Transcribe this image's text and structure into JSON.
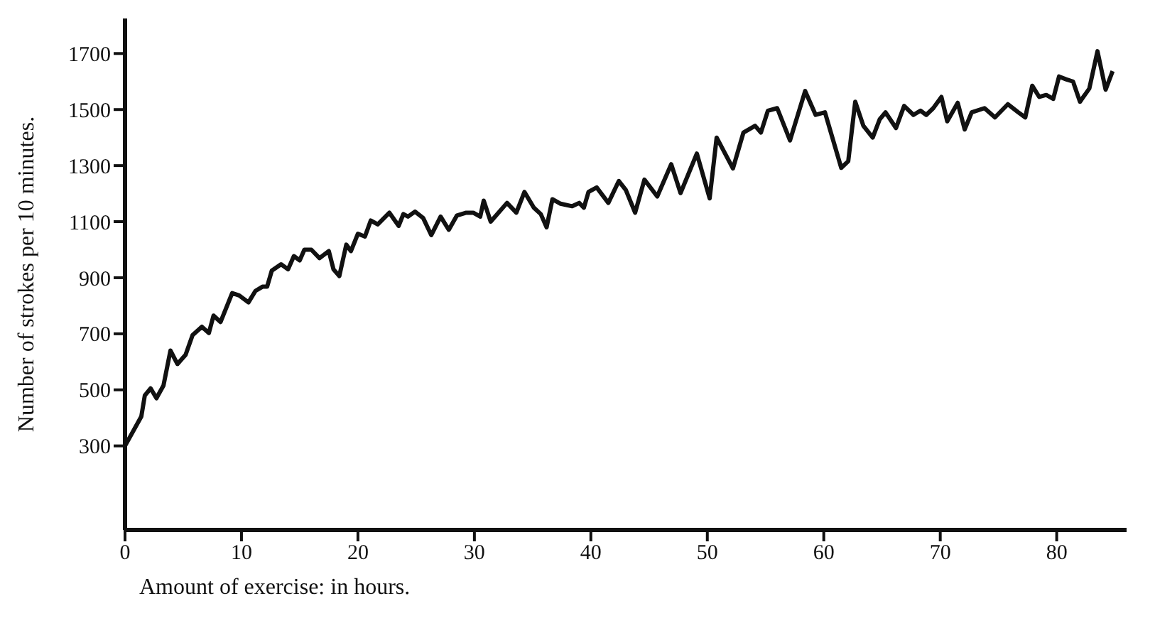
{
  "chart_data": {
    "type": "line",
    "xlabel": "Amount of exercise: in hours.",
    "ylabel": "Number of strokes per 10 minutes.",
    "xlim": [
      0,
      86
    ],
    "xticks": [
      0,
      10,
      20,
      30,
      40,
      50,
      60,
      70,
      80
    ],
    "ylim": [
      0,
      1825
    ],
    "yticks": [
      300,
      500,
      700,
      900,
      1100,
      1300,
      1500,
      1700
    ],
    "grid": false,
    "legend": false,
    "marker": "none",
    "line_style": "solid",
    "series": [
      {
        "color": "#111111",
        "x": [
          0,
          1.4,
          1.7,
          2.2,
          2.7,
          3.3,
          3.9,
          4.5,
          5.2,
          5.8,
          6.6,
          7.2,
          7.6,
          8.2,
          9.2,
          9.8,
          10.6,
          11.2,
          11.8,
          12.2,
          12.6,
          13.4,
          14,
          14.5,
          15,
          15.4,
          16,
          16.7,
          17.5,
          17.9,
          18.4,
          19,
          19.4,
          20,
          20.6,
          21.1,
          21.7,
          22.7,
          23.5,
          23.9,
          24.3,
          24.9,
          25.6,
          26.3,
          27.1,
          27.8,
          28.5,
          29.3,
          29.9,
          30.5,
          30.8,
          31.4,
          32.8,
          33.6,
          34.3,
          35.1,
          35.7,
          36.2,
          36.7,
          37.4,
          38.4,
          39,
          39.4,
          39.8,
          40.5,
          41.5,
          42.4,
          43,
          43.8,
          44.6,
          45.7,
          46.9,
          47.7,
          49.1,
          50.2,
          50.8,
          52.2,
          53.1,
          54.1,
          54.6,
          55.2,
          56,
          57.1,
          58.4,
          59.3,
          60.1,
          61.5,
          62.1,
          62.7,
          63.4,
          64.2,
          64.8,
          65.3,
          66.2,
          66.9,
          67.7,
          68.3,
          68.8,
          69.4,
          70.1,
          70.6,
          71.5,
          72.1,
          72.7,
          73.8,
          74.7,
          75.8,
          76.7,
          77.3,
          77.9,
          78.5,
          79.1,
          79.7,
          80.2,
          80.8,
          81.4,
          82,
          82.8,
          83.5,
          84.2,
          84.8
        ],
        "values": [
          300,
          405,
          480,
          505,
          470,
          515,
          640,
          592,
          625,
          695,
          725,
          703,
          765,
          742,
          845,
          837,
          812,
          853,
          868,
          868,
          925,
          948,
          930,
          977,
          962,
          1000,
          1000,
          970,
          995,
          930,
          906,
          1018,
          995,
          1057,
          1047,
          1104,
          1090,
          1132,
          1085,
          1127,
          1118,
          1136,
          1113,
          1052,
          1118,
          1071,
          1122,
          1132,
          1132,
          1118,
          1175,
          1100,
          1167,
          1132,
          1206,
          1150,
          1127,
          1080,
          1180,
          1164,
          1155,
          1167,
          1150,
          1206,
          1222,
          1167,
          1245,
          1213,
          1132,
          1250,
          1190,
          1305,
          1202,
          1343,
          1183,
          1400,
          1290,
          1418,
          1442,
          1418,
          1496,
          1505,
          1390,
          1566,
          1481,
          1490,
          1292,
          1316,
          1528,
          1442,
          1400,
          1465,
          1490,
          1434,
          1513,
          1481,
          1496,
          1481,
          1505,
          1545,
          1458,
          1524,
          1429,
          1490,
          1505,
          1472,
          1519,
          1490,
          1472,
          1585,
          1545,
          1552,
          1538,
          1618,
          1608,
          1600,
          1528,
          1575,
          1708,
          1571,
          1637
        ]
      }
    ]
  }
}
